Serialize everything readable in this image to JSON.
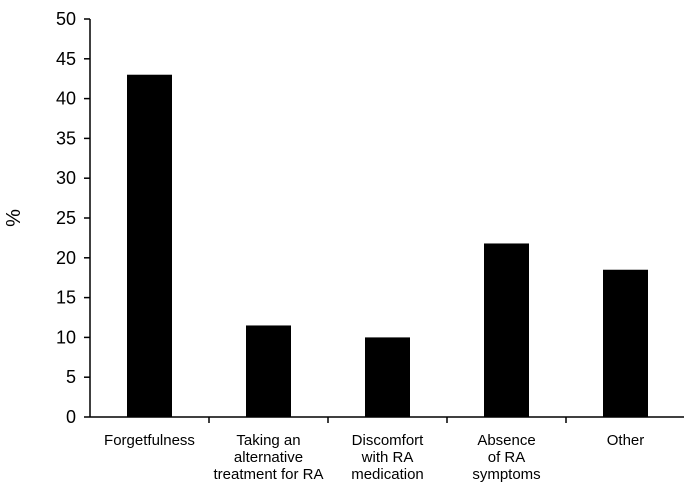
{
  "chart_data": {
    "type": "bar",
    "title": "",
    "xlabel": "",
    "ylabel": "%",
    "ylim": [
      0,
      50
    ],
    "yticks": [
      0,
      5,
      10,
      15,
      20,
      25,
      30,
      35,
      40,
      45,
      50
    ],
    "grid": false,
    "categories": [
      [
        "Forgetfulness"
      ],
      [
        "Taking an",
        "alternative",
        "treatment for RA"
      ],
      [
        "Discomfort",
        "with RA",
        "medication"
      ],
      [
        "Absence",
        "of RA",
        "symptoms"
      ],
      [
        "Other"
      ]
    ],
    "values": [
      43,
      11.5,
      10,
      21.8,
      18.5
    ],
    "colors": {
      "bar": "#000000",
      "axis": "#000000",
      "background": "#ffffff"
    }
  }
}
